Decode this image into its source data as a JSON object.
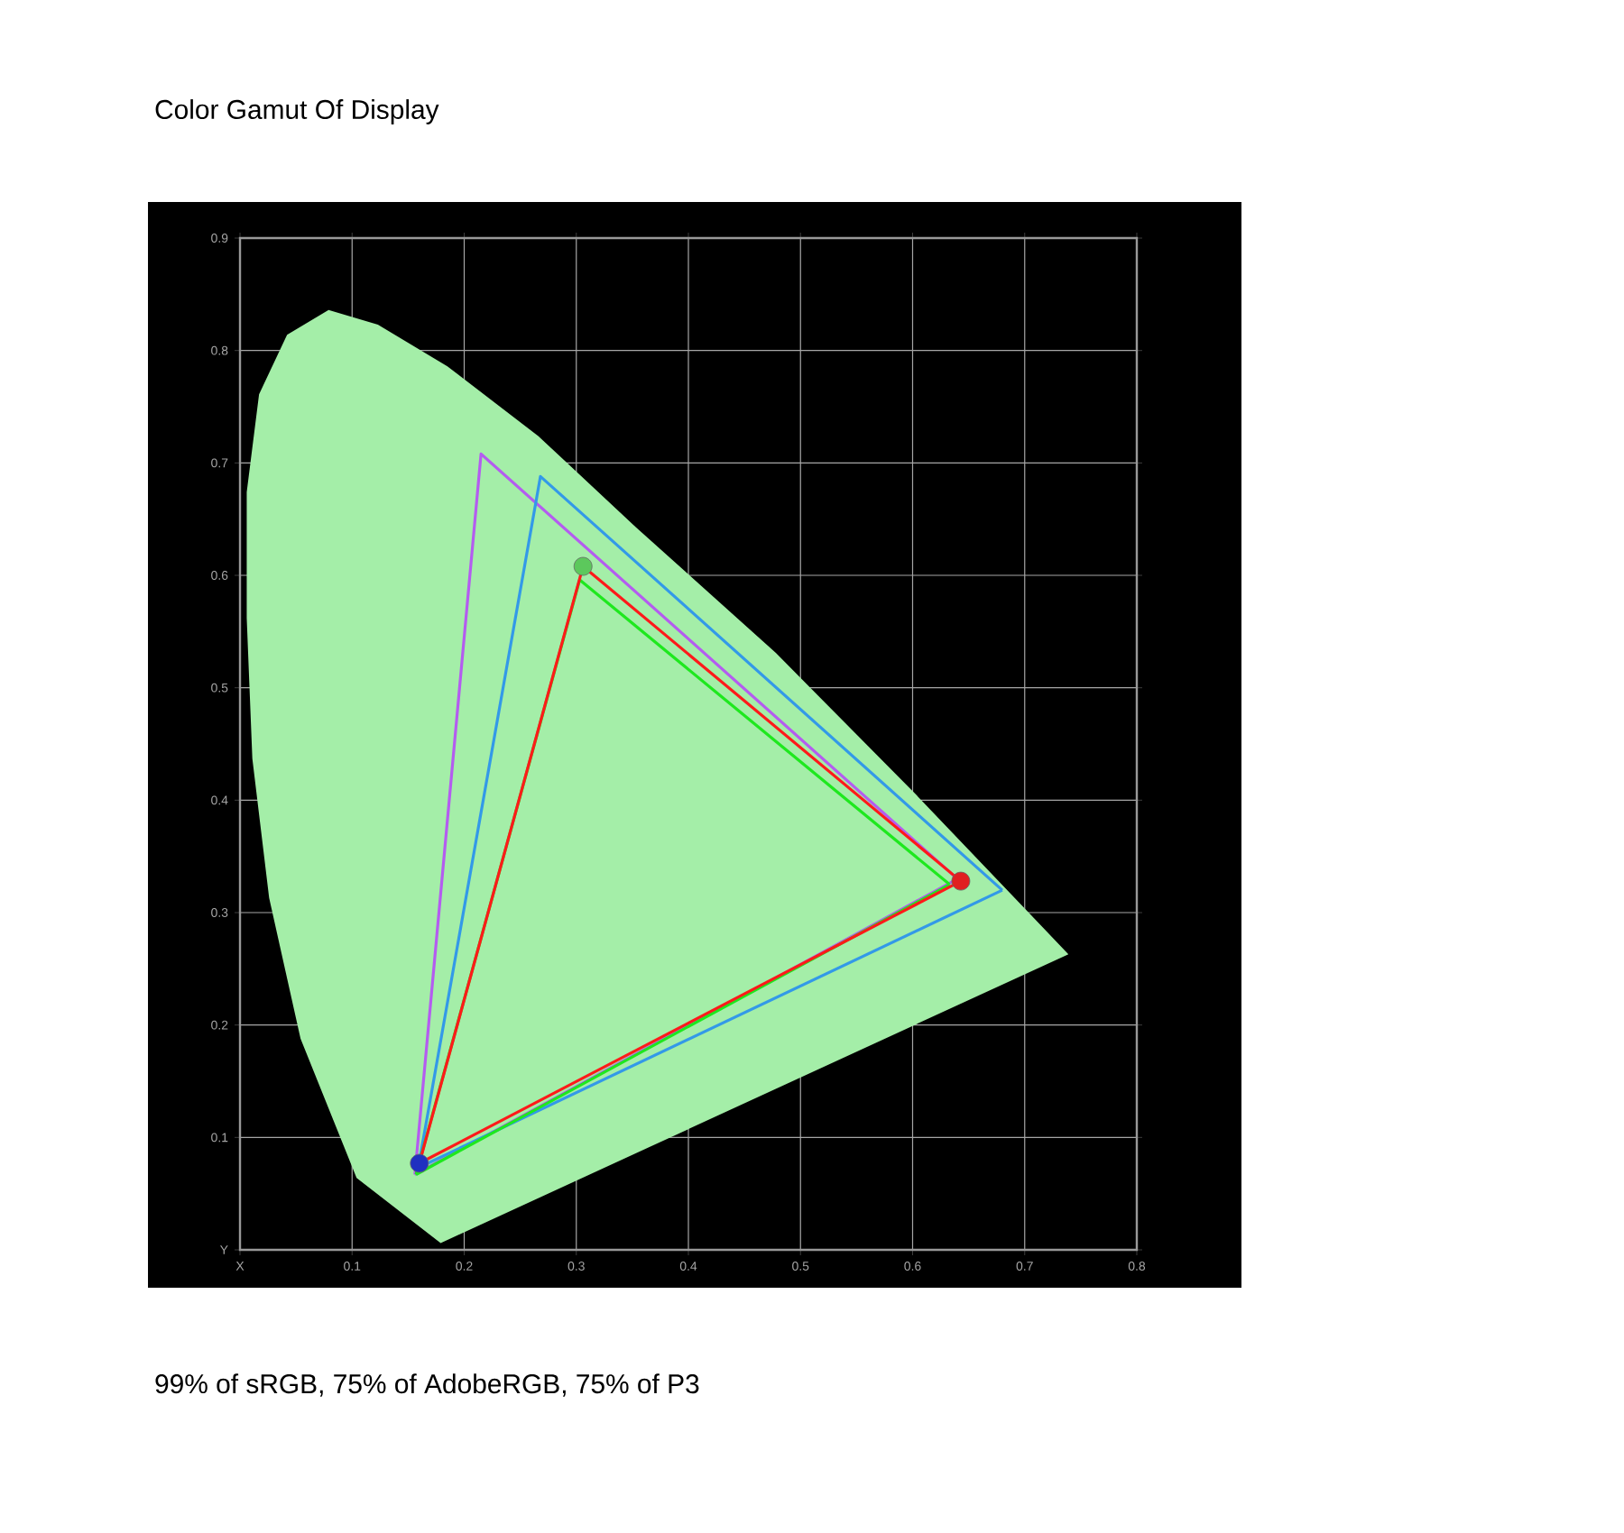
{
  "chart_data": {
    "type": "line",
    "title": "Color Gamut Of Display",
    "annotations": [
      "99% of sRGB, 75% of AdobeRGB, 75% of P3"
    ],
    "xlim": [
      0,
      0.8
    ],
    "ylim": [
      0,
      0.9
    ],
    "xticks": [
      {
        "value": 0,
        "label": "X"
      },
      0.1,
      0.2,
      0.3,
      0.4,
      0.5,
      0.6,
      0.7,
      0.8
    ],
    "yticks": [
      {
        "value": 0,
        "label": "Y"
      },
      0.1,
      0.2,
      0.3,
      0.4,
      0.5,
      0.6,
      0.7,
      0.8,
      0.9
    ],
    "grid": true,
    "series": [
      {
        "type": "area",
        "color": "#a4eea8",
        "x": [
          0.179,
          0.104,
          0.054,
          0.026,
          0.011,
          0.006,
          0.006,
          0.017,
          0.042,
          0.079,
          0.123,
          0.185,
          0.266,
          0.353,
          0.478,
          0.602,
          0.739
        ],
        "values": [
          0.006,
          0.064,
          0.188,
          0.313,
          0.437,
          0.562,
          0.674,
          0.761,
          0.814,
          0.836,
          0.823,
          0.786,
          0.724,
          0.643,
          0.531,
          0.406,
          0.263
        ]
      },
      {
        "color": "#b45cf0",
        "marker": "none",
        "x": [
          0.156,
          0.215,
          0.64
        ],
        "values": [
          0.067,
          0.708,
          0.33
        ]
      },
      {
        "color": "#b45cf0",
        "marker": "none",
        "x": [
          0.156,
          0.64
        ],
        "values": [
          0.067,
          0.33
        ]
      },
      {
        "color": "#3399e8",
        "marker": "none",
        "x": [
          0.159,
          0.268,
          0.68
        ],
        "values": [
          0.073,
          0.688,
          0.32
        ]
      },
      {
        "color": "#3399e8",
        "marker": "none",
        "x": [
          0.159,
          0.68
        ],
        "values": [
          0.073,
          0.32
        ]
      },
      {
        "color": "#1ee81e",
        "marker": "none",
        "x": [
          0.157,
          0.303,
          0.633
        ],
        "values": [
          0.067,
          0.596,
          0.325
        ]
      },
      {
        "color": "#1ee81e",
        "marker": "none",
        "x": [
          0.157,
          0.633
        ],
        "values": [
          0.067,
          0.325
        ]
      },
      {
        "color": "#ff1a1a",
        "marker": "none",
        "x": [
          0.16,
          0.306,
          0.643
        ],
        "values": [
          0.077,
          0.608,
          0.328
        ]
      },
      {
        "color": "#ff1a1a",
        "marker": "none",
        "x": [
          0.16,
          0.643
        ],
        "values": [
          0.077,
          0.328
        ]
      },
      {
        "type": "scatter",
        "marker": "circle",
        "colors": [
          "#5cc85c",
          "#e02020",
          "#2030c0"
        ],
        "x": [
          0.306,
          0.643,
          0.16
        ],
        "values": [
          0.608,
          0.328,
          0.077
        ]
      }
    ]
  }
}
